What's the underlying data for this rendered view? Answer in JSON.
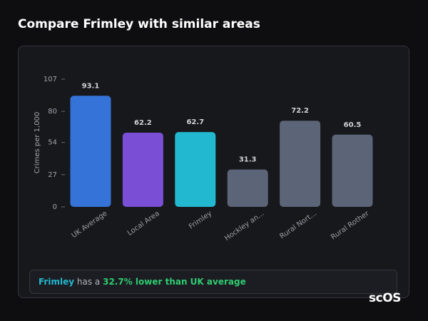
{
  "header": {
    "title": "Compare Frimley with similar areas"
  },
  "chart_data": {
    "type": "bar",
    "y_label": "Crimes per 1,000",
    "categories": [
      "UK Average",
      "Local Area",
      "Frimley",
      "Hockley an...",
      "Rural Nort...",
      "Rural Rother"
    ],
    "values": [
      93.1,
      62.2,
      62.7,
      31.3,
      72.2,
      60.5
    ],
    "colors": [
      "#3573d8",
      "#7a4fd5",
      "#22b8cf",
      "#5b6577",
      "#5b6577",
      "#5b6577"
    ],
    "ylim": [
      0,
      107
    ],
    "yticks": [
      0,
      27,
      54,
      80,
      107
    ],
    "grid": false
  },
  "footer": {
    "subject": "Frimley",
    "middle": "has a",
    "highlight": "32.7% lower than UK average"
  },
  "logo": "scOS"
}
